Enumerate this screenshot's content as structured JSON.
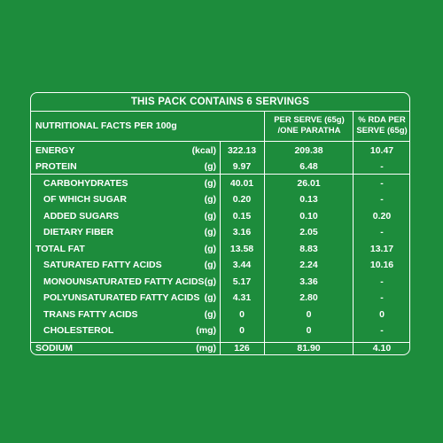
{
  "header": {
    "title": "THIS PACK CONTAINS 6 SERVINGS",
    "col_nutrition": "NUTRITIONAL FACTS PER 100g",
    "col_serve": "PER SERVE (65g) /ONE PARATHA",
    "col_rda": "% RDA PER SERVE (65g)"
  },
  "rows": [
    {
      "name": "ENERGY",
      "unit": "(kcal)",
      "per100": "322.13",
      "serve": "209.38",
      "rda": "10.47",
      "indent": false
    },
    {
      "name": "PROTEIN",
      "unit": "(g)",
      "per100": "9.97",
      "serve": "6.48",
      "rda": "-",
      "indent": false
    },
    {
      "name": "CARBOHYDRATES",
      "unit": "(g)",
      "per100": "40.01",
      "serve": "26.01",
      "rda": "-",
      "indent": true
    },
    {
      "name": "OF WHICH SUGAR",
      "unit": "(g)",
      "per100": "0.20",
      "serve": "0.13",
      "rda": "-",
      "indent": true
    },
    {
      "name": "ADDED SUGARS",
      "unit": "(g)",
      "per100": "0.15",
      "serve": "0.10",
      "rda": "0.20",
      "indent": true
    },
    {
      "name": "DIETARY FIBER",
      "unit": "(g)",
      "per100": "3.16",
      "serve": "2.05",
      "rda": "-",
      "indent": true
    },
    {
      "name": "TOTAL FAT",
      "unit": "(g)",
      "per100": "13.58",
      "serve": "8.83",
      "rda": "13.17",
      "indent": false
    },
    {
      "name": "SATURATED FATTY ACIDS",
      "unit": "(g)",
      "per100": "3.44",
      "serve": "2.24",
      "rda": "10.16",
      "indent": true
    },
    {
      "name": "MONOUNSATURATED FATTY ACIDS",
      "unit": "(g)",
      "per100": "5.17",
      "serve": "3.36",
      "rda": "-",
      "indent": true
    },
    {
      "name": "POLYUNSATURATED FATTY ACIDS",
      "unit": "(g)",
      "per100": "4.31",
      "serve": "2.80",
      "rda": "-",
      "indent": true
    },
    {
      "name": "TRANS FATTY ACIDS",
      "unit": "(g)",
      "per100": "0",
      "serve": "0",
      "rda": "0",
      "indent": true
    },
    {
      "name": "CHOLESTEROL",
      "unit": "(mg)",
      "per100": "0",
      "serve": "0",
      "rda": "-",
      "indent": true
    },
    {
      "name": "SODIUM",
      "unit": "(mg)",
      "per100": "126",
      "serve": "81.90",
      "rda": "4.10",
      "indent": false
    }
  ]
}
